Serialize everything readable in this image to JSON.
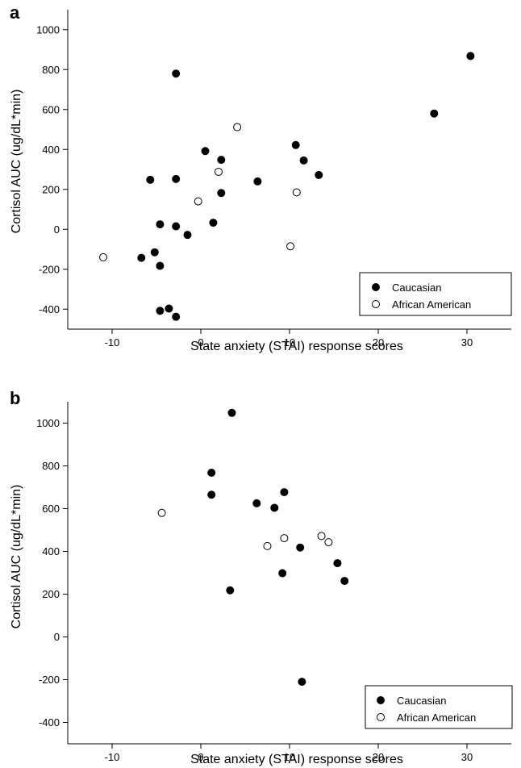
{
  "chart_data": [
    {
      "type": "scatter",
      "panel": "a",
      "xlabel": "State anxiety (STAI) response scores",
      "ylabel": "Cortisol AUC (ug/dL*min)",
      "xlim": [
        -15,
        35
      ],
      "ylim": [
        -500,
        1100
      ],
      "xticks": [
        -10,
        0,
        10,
        20,
        30
      ],
      "yticks": [
        -400,
        -200,
        0,
        200,
        400,
        600,
        800,
        1000
      ],
      "legend_position": "bottom-right",
      "grid": false,
      "series": [
        {
          "name": "Caucasian",
          "marker": "filled-circle",
          "color": "#000000",
          "points": [
            {
              "x": -2.8,
              "y": 780
            },
            {
              "x": 0.5,
              "y": 392
            },
            {
              "x": 2.3,
              "y": 348
            },
            {
              "x": -5.7,
              "y": 248
            },
            {
              "x": -2.8,
              "y": 252
            },
            {
              "x": 2.3,
              "y": 182
            },
            {
              "x": 6.4,
              "y": 240
            },
            {
              "x": 10.7,
              "y": 422
            },
            {
              "x": 11.6,
              "y": 345
            },
            {
              "x": 13.3,
              "y": 272
            },
            {
              "x": 26.3,
              "y": 580
            },
            {
              "x": 30.4,
              "y": 868
            },
            {
              "x": -4.6,
              "y": 25
            },
            {
              "x": -2.8,
              "y": 15
            },
            {
              "x": 1.4,
              "y": 33
            },
            {
              "x": -1.5,
              "y": -28
            },
            {
              "x": -5.2,
              "y": -115
            },
            {
              "x": -6.7,
              "y": -143
            },
            {
              "x": -4.6,
              "y": -183
            },
            {
              "x": -4.6,
              "y": -408
            },
            {
              "x": -3.6,
              "y": -397
            },
            {
              "x": -2.8,
              "y": -438
            }
          ]
        },
        {
          "name": "African American",
          "marker": "open-circle",
          "color": "#000000",
          "points": [
            {
              "x": 4.1,
              "y": 512
            },
            {
              "x": 2.0,
              "y": 288
            },
            {
              "x": -0.3,
              "y": 140
            },
            {
              "x": 10.8,
              "y": 185
            },
            {
              "x": 10.1,
              "y": -85
            },
            {
              "x": -11.0,
              "y": -140
            }
          ]
        }
      ]
    },
    {
      "type": "scatter",
      "panel": "b",
      "xlabel": "State anxiety (STAI) response scores",
      "ylabel": "Cortisol AUC (ug/dL*min)",
      "xlim": [
        -15,
        35
      ],
      "ylim": [
        -500,
        1100
      ],
      "xticks": [
        -10,
        0,
        10,
        20,
        30
      ],
      "yticks": [
        -400,
        -200,
        0,
        200,
        400,
        600,
        800,
        1000
      ],
      "legend_position": "bottom-right",
      "grid": false,
      "series": [
        {
          "name": "Caucasian",
          "marker": "filled-circle",
          "color": "#000000",
          "points": [
            {
              "x": 3.5,
              "y": 1048
            },
            {
              "x": 1.2,
              "y": 768
            },
            {
              "x": 1.2,
              "y": 665
            },
            {
              "x": 9.4,
              "y": 677
            },
            {
              "x": 6.3,
              "y": 625
            },
            {
              "x": 8.3,
              "y": 604
            },
            {
              "x": 11.2,
              "y": 418
            },
            {
              "x": 9.2,
              "y": 298
            },
            {
              "x": 15.4,
              "y": 345
            },
            {
              "x": 16.2,
              "y": 262
            },
            {
              "x": 3.3,
              "y": 218
            },
            {
              "x": 11.4,
              "y": -210
            }
          ]
        },
        {
          "name": "African American",
          "marker": "open-circle",
          "color": "#000000",
          "points": [
            {
              "x": -4.4,
              "y": 580
            },
            {
              "x": 7.5,
              "y": 425
            },
            {
              "x": 9.4,
              "y": 462
            },
            {
              "x": 13.6,
              "y": 472
            },
            {
              "x": 14.4,
              "y": 443
            }
          ]
        }
      ]
    }
  ]
}
